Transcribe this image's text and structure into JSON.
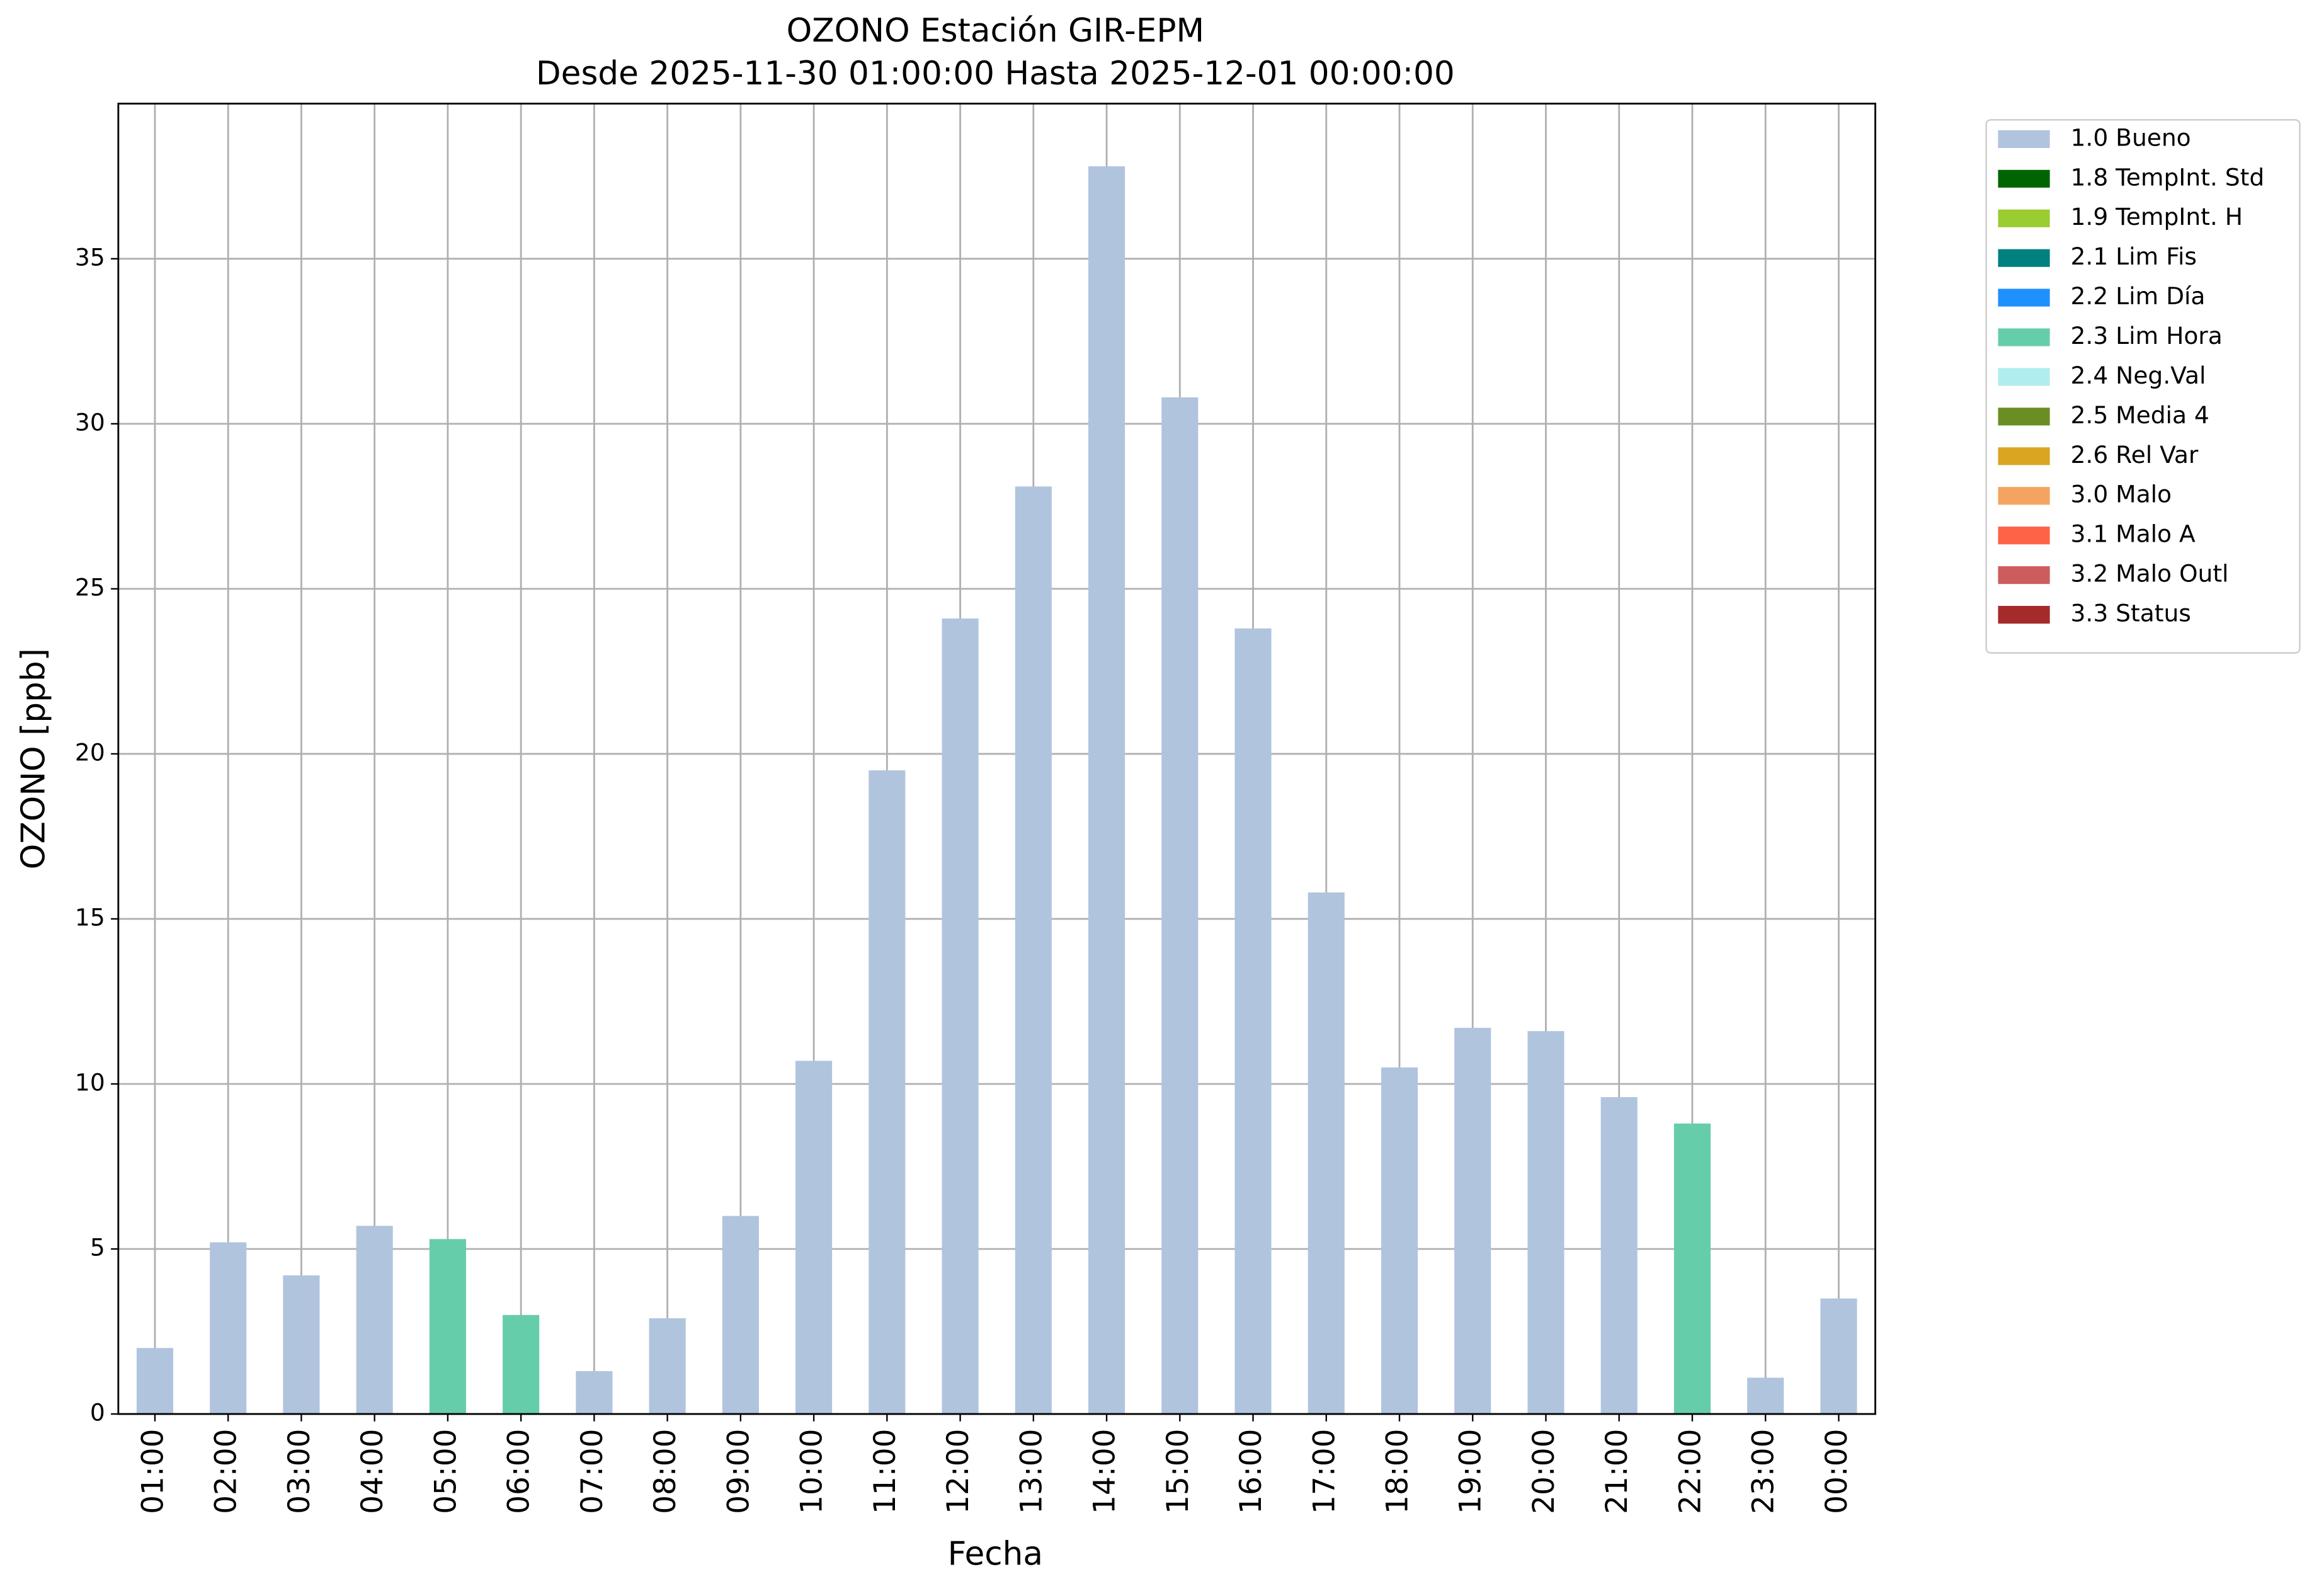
{
  "chart_data": {
    "type": "bar",
    "title": "OZONO Estación GIR-EPM",
    "subtitle": "Desde 2025-11-30 01:00:00 Hasta 2025-12-01 00:00:00",
    "x_label": "Fecha",
    "y_label": "OZONO [ppb]",
    "categories": [
      "01:00",
      "02:00",
      "03:00",
      "04:00",
      "05:00",
      "06:00",
      "07:00",
      "08:00",
      "09:00",
      "10:00",
      "11:00",
      "12:00",
      "13:00",
      "14:00",
      "15:00",
      "16:00",
      "17:00",
      "18:00",
      "19:00",
      "20:00",
      "21:00",
      "22:00",
      "23:00",
      "00:00"
    ],
    "series": [
      {
        "name": "1.0 Bueno",
        "color": "#b0c4de",
        "values": [
          2,
          5.2,
          4.2,
          5.7,
          null,
          null,
          1.3,
          2.9,
          6,
          10.7,
          19.5,
          24.1,
          28.1,
          37.8,
          30.8,
          23.8,
          15.8,
          10.5,
          11.7,
          11.6,
          9.6,
          null,
          1.1,
          3.5
        ]
      },
      {
        "name": "1.8 TempInt. Std",
        "color": "#006400",
        "values": [
          null,
          null,
          null,
          null,
          null,
          null,
          null,
          null,
          null,
          null,
          null,
          null,
          null,
          null,
          null,
          null,
          null,
          null,
          null,
          null,
          null,
          null,
          null,
          null
        ]
      },
      {
        "name": "1.9 TempInt. H",
        "color": "#9acd32",
        "values": [
          null,
          null,
          null,
          null,
          null,
          null,
          null,
          null,
          null,
          null,
          null,
          null,
          null,
          null,
          null,
          null,
          null,
          null,
          null,
          null,
          null,
          null,
          null,
          null
        ]
      },
      {
        "name": "2.1 Lim Fis",
        "color": "#008080",
        "values": [
          null,
          null,
          null,
          null,
          null,
          null,
          null,
          null,
          null,
          null,
          null,
          null,
          null,
          null,
          null,
          null,
          null,
          null,
          null,
          null,
          null,
          null,
          null,
          null
        ]
      },
      {
        "name": "2.2 Lim Día",
        "color": "#1e90ff",
        "values": [
          null,
          null,
          null,
          null,
          null,
          null,
          null,
          null,
          null,
          null,
          null,
          null,
          null,
          null,
          null,
          null,
          null,
          null,
          null,
          null,
          null,
          null,
          null,
          null
        ]
      },
      {
        "name": "2.3 Lim Hora",
        "color": "#66cdaa",
        "values": [
          null,
          null,
          null,
          null,
          5.3,
          3,
          null,
          null,
          null,
          null,
          null,
          null,
          null,
          null,
          null,
          null,
          null,
          null,
          null,
          null,
          null,
          8.8,
          null,
          null
        ]
      },
      {
        "name": "2.4 Neg.Val",
        "color": "#afeeee",
        "values": [
          null,
          null,
          null,
          null,
          null,
          null,
          null,
          null,
          null,
          null,
          null,
          null,
          null,
          null,
          null,
          null,
          null,
          null,
          null,
          null,
          null,
          null,
          null,
          null
        ]
      },
      {
        "name": "2.5 Media 4",
        "color": "#6b8e23",
        "values": [
          null,
          null,
          null,
          null,
          null,
          null,
          null,
          null,
          null,
          null,
          null,
          null,
          null,
          null,
          null,
          null,
          null,
          null,
          null,
          null,
          null,
          null,
          null,
          null
        ]
      },
      {
        "name": "2.6 Rel Var",
        "color": "#daa520",
        "values": [
          null,
          null,
          null,
          null,
          null,
          null,
          null,
          null,
          null,
          null,
          null,
          null,
          null,
          null,
          null,
          null,
          null,
          null,
          null,
          null,
          null,
          null,
          null,
          null
        ]
      },
      {
        "name": "3.0 Malo",
        "color": "#f4a460",
        "values": [
          null,
          null,
          null,
          null,
          null,
          null,
          null,
          null,
          null,
          null,
          null,
          null,
          null,
          null,
          null,
          null,
          null,
          null,
          null,
          null,
          null,
          null,
          null,
          null
        ]
      },
      {
        "name": "3.1 Malo A",
        "color": "#ff6347",
        "values": [
          null,
          null,
          null,
          null,
          null,
          null,
          null,
          null,
          null,
          null,
          null,
          null,
          null,
          null,
          null,
          null,
          null,
          null,
          null,
          null,
          null,
          null,
          null,
          null
        ]
      },
      {
        "name": "3.2 Malo Outl",
        "color": "#cd5c5c",
        "values": [
          null,
          null,
          null,
          null,
          null,
          null,
          null,
          null,
          null,
          null,
          null,
          null,
          null,
          null,
          null,
          null,
          null,
          null,
          null,
          null,
          null,
          null,
          null,
          null
        ]
      },
      {
        "name": "3.3 Status",
        "color": "#a52a2a",
        "values": [
          null,
          null,
          null,
          null,
          null,
          null,
          null,
          null,
          null,
          null,
          null,
          null,
          null,
          null,
          null,
          null,
          null,
          null,
          null,
          null,
          null,
          null,
          null,
          null
        ]
      }
    ],
    "ylim": [
      0,
      39.7
    ],
    "yticks": [
      0,
      5,
      10,
      15,
      20,
      25,
      30,
      35
    ],
    "grid": true,
    "legend": "outside-upper-right"
  }
}
